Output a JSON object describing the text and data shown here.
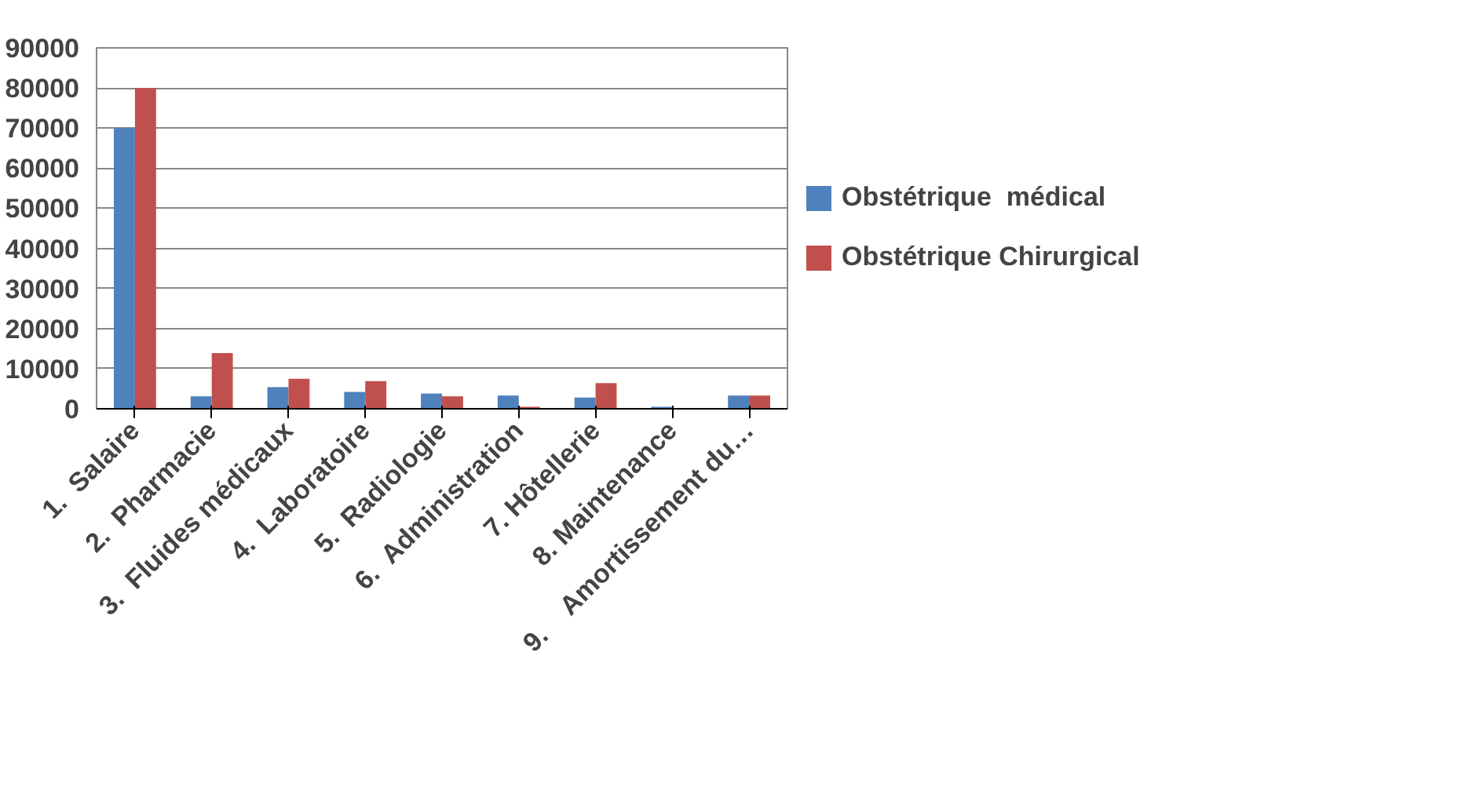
{
  "chart_data": {
    "type": "bar",
    "categories": [
      "1.  Salaire",
      "2.  Pharmacie",
      "3.  Fluides médicaux",
      "4.  Laboratoire",
      "5.  Radiologie",
      "6.  Administration",
      "7. Hôtellerie",
      "8. Maintenance",
      "9.    Amortissement du…"
    ],
    "series": [
      {
        "name": "Obstétrique  médical",
        "color": "#4f81bd",
        "values": [
          70000,
          3100,
          5400,
          4200,
          3800,
          3300,
          2800,
          500,
          3300
        ]
      },
      {
        "name": "Obstétrique Chirurgical",
        "color": "#c0504d",
        "values": [
          80000,
          13900,
          7500,
          6900,
          3100,
          500,
          6400,
          0,
          3300
        ]
      }
    ],
    "ylim": [
      0,
      90000
    ],
    "yticks": [
      0,
      10000,
      20000,
      30000,
      40000,
      50000,
      60000,
      70000,
      80000,
      90000
    ],
    "grid": "y",
    "legend": "right"
  }
}
